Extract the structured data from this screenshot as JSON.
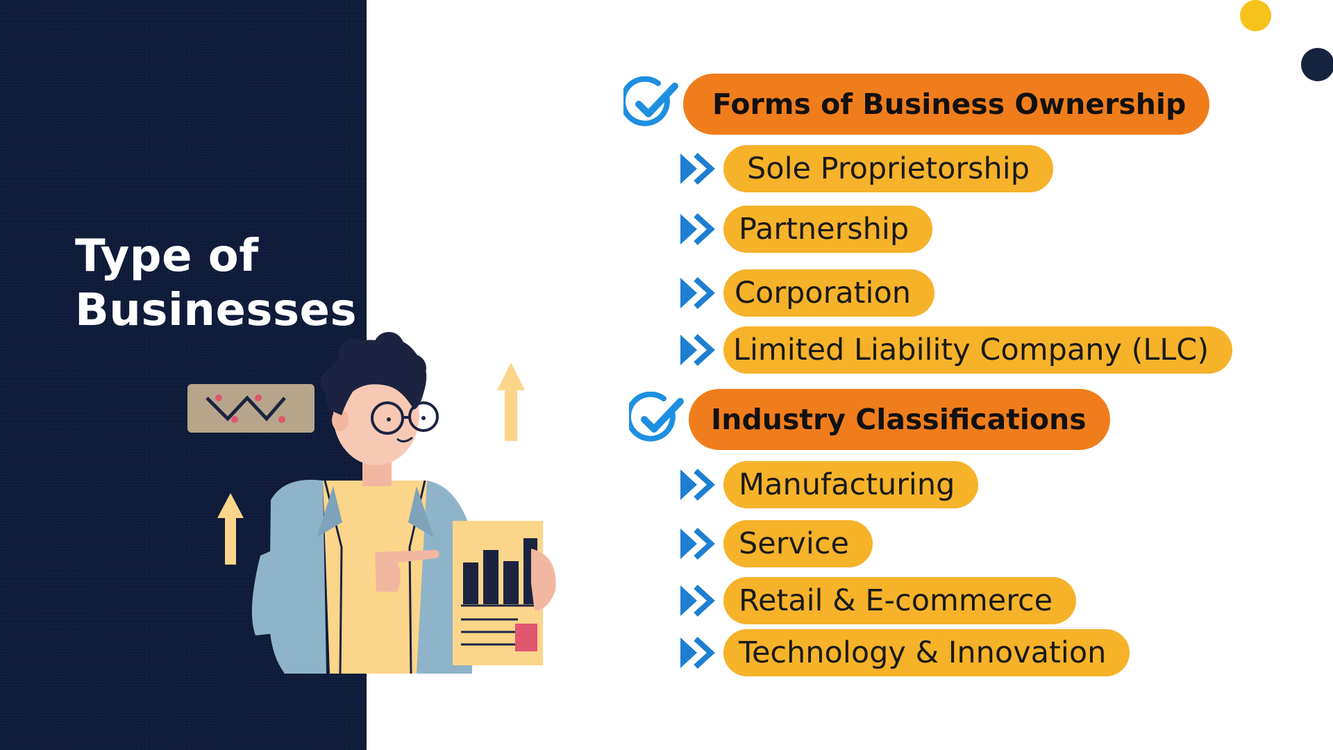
{
  "slide": {
    "title_line1": "Type of",
    "title_line2": "Businesses"
  },
  "colors": {
    "panel": "#0f1b3a",
    "heading_pill": "#f07d1c",
    "item_pill": "#f6b229",
    "check": "#1e8fe0",
    "chevron": "#1e7fd0"
  },
  "sections": [
    {
      "heading": "Forms of Business Ownership",
      "icon": "check-circle-icon",
      "items": [
        "Sole Proprietorship",
        "Partnership",
        "Corporation",
        "Limited Liability Company (LLC)"
      ]
    },
    {
      "heading": "Industry Classifications",
      "icon": "check-circle-icon",
      "items": [
        "Manufacturing",
        "Service",
        "Retail & E-commerce",
        "Technology & Innovation"
      ]
    }
  ],
  "item_icon": "double-chevron-icon",
  "illustration": {
    "icon": "businessman-presenting-chart-icon"
  }
}
